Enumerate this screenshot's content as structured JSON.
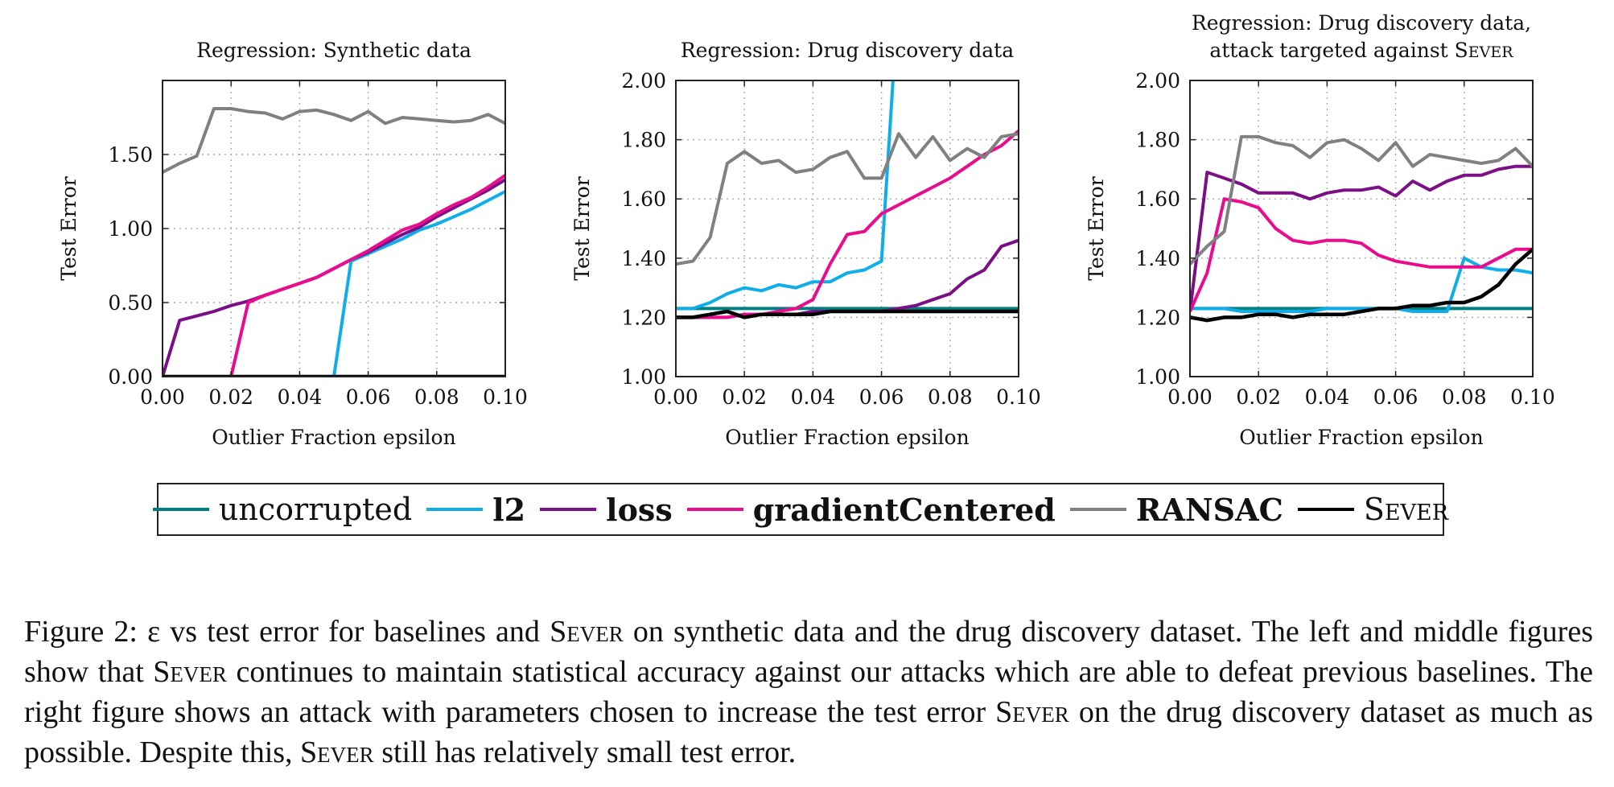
{
  "chart_data": [
    {
      "type": "line",
      "title": "Regression: Synthetic data",
      "subtitle": "",
      "xlabel": "Outlier Fraction epsilon",
      "ylabel": "Test Error",
      "xlim": [
        0,
        0.1
      ],
      "ylim": [
        0,
        2.0
      ],
      "xticks": [
        "0.00",
        "0.02",
        "0.04",
        "0.06",
        "0.08",
        "0.10"
      ],
      "yticks": [
        "0.00",
        "0.50",
        "1.00",
        "1.50"
      ],
      "ytick_values": [
        0,
        0.5,
        1.0,
        1.5
      ],
      "grid": true,
      "x": [
        0,
        0.005,
        0.01,
        0.015,
        0.02,
        0.025,
        0.03,
        0.035,
        0.04,
        0.045,
        0.05,
        0.055,
        0.06,
        0.065,
        0.07,
        0.075,
        0.08,
        0.085,
        0.09,
        0.095,
        0.1
      ],
      "series": [
        {
          "name": "uncorrupted",
          "values": [
            0,
            0,
            0,
            0,
            0,
            0,
            0,
            0,
            0,
            0,
            0,
            0,
            0,
            0,
            0,
            0,
            0,
            0,
            0,
            0,
            0
          ]
        },
        {
          "name": "l2",
          "values": [
            0,
            0,
            0,
            0,
            0,
            0,
            0,
            0,
            0,
            0,
            0,
            0.78,
            0.83,
            0.88,
            0.93,
            0.99,
            1.03,
            1.08,
            1.13,
            1.19,
            1.25
          ]
        },
        {
          "name": "loss",
          "values": [
            0,
            0.38,
            0.41,
            0.44,
            0.48,
            0.51,
            0.55,
            0.59,
            0.63,
            0.67,
            0.73,
            0.79,
            0.84,
            0.9,
            0.96,
            1.01,
            1.08,
            1.14,
            1.2,
            1.26,
            1.33
          ]
        },
        {
          "name": "gradientCentered",
          "values": [
            0,
            0,
            0,
            0,
            0,
            0.5,
            0.55,
            0.59,
            0.63,
            0.67,
            0.73,
            0.79,
            0.85,
            0.92,
            0.99,
            1.03,
            1.1,
            1.16,
            1.21,
            1.28,
            1.36
          ]
        },
        {
          "name": "RANSAC",
          "values": [
            1.38,
            1.44,
            1.49,
            1.81,
            1.81,
            1.79,
            1.78,
            1.74,
            1.79,
            1.8,
            1.77,
            1.73,
            1.79,
            1.71,
            1.75,
            1.74,
            1.73,
            1.72,
            1.73,
            1.77,
            1.71
          ]
        },
        {
          "name": "SEVER",
          "values": [
            0,
            0,
            0,
            0,
            0,
            0,
            0,
            0,
            0,
            0,
            0,
            0,
            0,
            0,
            0,
            0,
            0,
            0,
            0,
            0,
            0
          ]
        }
      ]
    },
    {
      "type": "line",
      "title": "Regression: Drug discovery data",
      "subtitle": "",
      "xlabel": "Outlier Fraction epsilon",
      "ylabel": "Test Error",
      "xlim": [
        0,
        0.1
      ],
      "ylim": [
        1.0,
        2.0
      ],
      "xticks": [
        "0.00",
        "0.02",
        "0.04",
        "0.06",
        "0.08",
        "0.10"
      ],
      "yticks": [
        "1.00",
        "1.20",
        "1.40",
        "1.60",
        "1.80",
        "2.00"
      ],
      "ytick_values": [
        1.0,
        1.2,
        1.4,
        1.6,
        1.8,
        2.0
      ],
      "grid": true,
      "x": [
        0,
        0.005,
        0.01,
        0.015,
        0.02,
        0.025,
        0.03,
        0.035,
        0.04,
        0.045,
        0.05,
        0.055,
        0.06,
        0.065,
        0.07,
        0.075,
        0.08,
        0.085,
        0.09,
        0.095,
        0.1
      ],
      "series": [
        {
          "name": "uncorrupted",
          "values": [
            1.23,
            1.23,
            1.23,
            1.23,
            1.23,
            1.23,
            1.23,
            1.23,
            1.23,
            1.23,
            1.23,
            1.23,
            1.23,
            1.23,
            1.23,
            1.23,
            1.23,
            1.23,
            1.23,
            1.23,
            1.23
          ]
        },
        {
          "name": "l2",
          "values": [
            1.23,
            1.23,
            1.25,
            1.28,
            1.3,
            1.29,
            1.31,
            1.3,
            1.32,
            1.32,
            1.35,
            1.36,
            1.39,
            2.3,
            null,
            null,
            null,
            null,
            null,
            null,
            null
          ]
        },
        {
          "name": "loss",
          "values": [
            1.2,
            1.2,
            1.2,
            1.2,
            1.21,
            1.21,
            1.21,
            1.21,
            1.22,
            1.22,
            1.22,
            1.22,
            1.22,
            1.23,
            1.24,
            1.26,
            1.28,
            1.33,
            1.36,
            1.44,
            1.46
          ]
        },
        {
          "name": "gradientCentered",
          "values": [
            1.2,
            1.2,
            1.2,
            1.2,
            1.21,
            1.21,
            1.22,
            1.23,
            1.26,
            1.38,
            1.48,
            1.49,
            1.55,
            1.58,
            1.61,
            1.64,
            1.67,
            1.71,
            1.75,
            1.78,
            1.83
          ]
        },
        {
          "name": "RANSAC",
          "values": [
            1.38,
            1.39,
            1.47,
            1.72,
            1.76,
            1.72,
            1.73,
            1.69,
            1.7,
            1.74,
            1.76,
            1.67,
            1.67,
            1.82,
            1.74,
            1.81,
            1.73,
            1.77,
            1.74,
            1.81,
            1.82
          ]
        },
        {
          "name": "SEVER",
          "values": [
            1.2,
            1.2,
            1.21,
            1.22,
            1.2,
            1.21,
            1.21,
            1.21,
            1.21,
            1.22,
            1.22,
            1.22,
            1.22,
            1.22,
            1.22,
            1.22,
            1.22,
            1.22,
            1.22,
            1.22,
            1.22
          ]
        }
      ]
    },
    {
      "type": "line",
      "title": "Regression: Drug discovery data,",
      "subtitle": "attack targeted against SEVER",
      "xlabel": "Outlier Fraction epsilon",
      "ylabel": "Test Error",
      "xlim": [
        0,
        0.1
      ],
      "ylim": [
        1.0,
        2.0
      ],
      "xticks": [
        "0.00",
        "0.02",
        "0.04",
        "0.06",
        "0.08",
        "0.10"
      ],
      "yticks": [
        "1.00",
        "1.20",
        "1.40",
        "1.60",
        "1.80",
        "2.00"
      ],
      "ytick_values": [
        1.0,
        1.2,
        1.4,
        1.6,
        1.8,
        2.0
      ],
      "grid": true,
      "x": [
        0,
        0.005,
        0.01,
        0.015,
        0.02,
        0.025,
        0.03,
        0.035,
        0.04,
        0.045,
        0.05,
        0.055,
        0.06,
        0.065,
        0.07,
        0.075,
        0.08,
        0.085,
        0.09,
        0.095,
        0.1
      ],
      "series": [
        {
          "name": "uncorrupted",
          "values": [
            1.23,
            1.23,
            1.23,
            1.23,
            1.23,
            1.23,
            1.23,
            1.23,
            1.23,
            1.23,
            1.23,
            1.23,
            1.23,
            1.23,
            1.23,
            1.23,
            1.23,
            1.23,
            1.23,
            1.23,
            1.23
          ]
        },
        {
          "name": "l2",
          "values": [
            1.23,
            1.23,
            1.23,
            1.22,
            1.22,
            1.22,
            1.22,
            1.22,
            1.23,
            1.23,
            1.23,
            1.23,
            1.23,
            1.22,
            1.22,
            1.22,
            1.4,
            1.37,
            1.36,
            1.36,
            1.35
          ]
        },
        {
          "name": "loss",
          "values": [
            1.22,
            1.69,
            1.67,
            1.65,
            1.62,
            1.62,
            1.62,
            1.6,
            1.62,
            1.63,
            1.63,
            1.64,
            1.61,
            1.66,
            1.63,
            1.66,
            1.68,
            1.68,
            1.7,
            1.71,
            1.71
          ]
        },
        {
          "name": "gradientCentered",
          "values": [
            1.22,
            1.35,
            1.6,
            1.59,
            1.57,
            1.5,
            1.46,
            1.45,
            1.46,
            1.46,
            1.45,
            1.41,
            1.39,
            1.38,
            1.37,
            1.37,
            1.37,
            1.37,
            1.4,
            1.43,
            1.43
          ]
        },
        {
          "name": "RANSAC",
          "values": [
            1.38,
            1.44,
            1.49,
            1.81,
            1.81,
            1.79,
            1.78,
            1.74,
            1.79,
            1.8,
            1.77,
            1.73,
            1.79,
            1.71,
            1.75,
            1.74,
            1.73,
            1.72,
            1.73,
            1.77,
            1.71
          ]
        },
        {
          "name": "SEVER",
          "values": [
            1.2,
            1.19,
            1.2,
            1.2,
            1.21,
            1.21,
            1.2,
            1.21,
            1.21,
            1.21,
            1.22,
            1.23,
            1.23,
            1.24,
            1.24,
            1.25,
            1.25,
            1.27,
            1.31,
            1.38,
            1.43
          ]
        }
      ]
    }
  ],
  "series_colors": {
    "uncorrupted": "#007f7f",
    "l2": "#10aee8",
    "loss": "#7b0f86",
    "gradientCentered": "#ea0c8c",
    "RANSAC": "#808080",
    "SEVER": "#000000"
  },
  "legend": [
    {
      "name": "uncorrupted",
      "label": "uncorrupted",
      "style": "normal"
    },
    {
      "name": "l2",
      "label": "l2",
      "style": "bold"
    },
    {
      "name": "loss",
      "label": "loss",
      "style": "bold"
    },
    {
      "name": "gradientCentered",
      "label": "gradientCentered",
      "style": "bold"
    },
    {
      "name": "RANSAC",
      "label": "RANSAC",
      "style": "bold"
    },
    {
      "name": "SEVER",
      "label": "Sever",
      "style": "smallcaps"
    }
  ],
  "caption": {
    "label": "Figure 2:",
    "parts": [
      " ε vs test error for baselines and ",
      "Sever",
      " on synthetic data and the drug discovery dataset. The left and middle figures show that ",
      "Sever",
      " continues to maintain statistical accuracy against our attacks which are able to defeat previous baselines. The right figure shows an attack with parameters chosen to increase the test error ",
      "Sever",
      " on the drug discovery dataset as much as possible. Despite this, ",
      "Sever",
      " still has relatively small test error."
    ]
  }
}
